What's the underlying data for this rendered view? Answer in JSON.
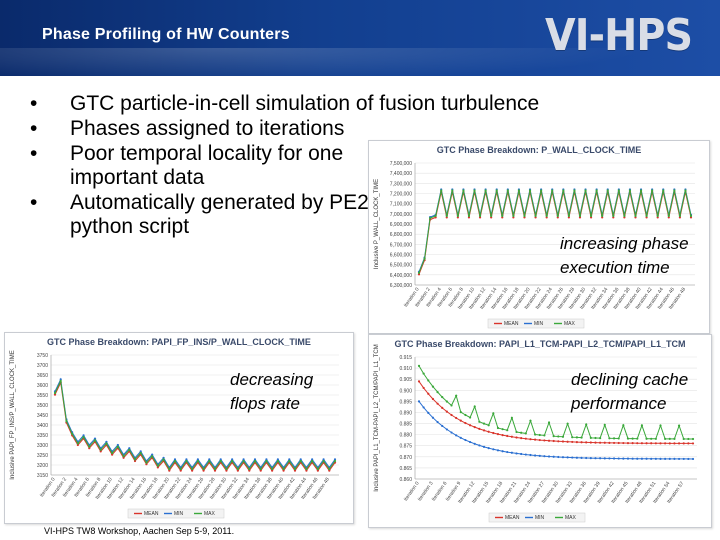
{
  "header": {
    "title": "Phase Profiling of HW Counters",
    "logo_text": "VI-HPS",
    "colors": {
      "bar": "#123f8f",
      "logo": "#d9dde6"
    }
  },
  "bullets": [
    "GTC particle-in-cell simulation of fusion turbulence",
    "Phases assigned to iterations",
    "Poor temporal locality for one important data",
    "Automatically generated by PE2 python script"
  ],
  "annotations": {
    "wall_clock": "increasing phase execution time",
    "flops": "decreasing flops rate",
    "cache": "declining cache performance"
  },
  "footer": "VI-HPS TW8 Workshop, Aachen Sep 5-9, 2011.",
  "chart_data": [
    {
      "type": "line",
      "title": "GTC Phase Breakdown: P_WALL_CLOCK_TIME",
      "ylabel": "Inclusive P_WALL_CLOCK_TIME",
      "yticks": [
        "6,300,000",
        "6,400,000",
        "6,500,000",
        "6,600,000",
        "6,700,000",
        "6,800,000",
        "6,900,000",
        "7,000,000",
        "7,100,000",
        "7,200,000",
        "7,300,000",
        "7,400,000",
        "7,500,000"
      ],
      "ylim": [
        6300000,
        7500000
      ],
      "legend": [
        "MEAN",
        "MIN",
        "MAX"
      ],
      "series_colors": [
        "#d9342b",
        "#2a6fd1",
        "#3aa83a"
      ],
      "points": 50,
      "pattern": {
        "base": [
          6450000,
          6980000
        ],
        "spike": 7230000,
        "every": 2
      }
    },
    {
      "type": "line",
      "title": "GTC Phase Breakdown: PAPI_FP_INS/P_WALL_CLOCK_TIME",
      "ylabel": "Inclusive PAPI_FP_INS/P_WALL_CLOCK_TIME",
      "yticks": [
        "3150",
        "3200",
        "3250",
        "3300",
        "3350",
        "3400",
        "3450",
        "3500",
        "3550",
        "3600",
        "3650",
        "3700",
        "3750"
      ],
      "ylim": [
        3150,
        3750
      ],
      "legend": [
        "MEAN",
        "MIN",
        "MAX"
      ],
      "series_colors": [
        "#d9342b",
        "#2a6fd1",
        "#3aa83a"
      ],
      "points": 50,
      "pattern": {
        "base": [
          3620,
          3210
        ],
        "dip": 3160,
        "every": 2
      }
    },
    {
      "type": "line",
      "title": "GTC Phase Breakdown: PAPI_L1_TCM-PAPI_L2_TCM/PAPI_L1_TCM",
      "ylabel": "Inclusive PAPI_L1_TCM-PAPI_L2_TCM/PAPI_L1_TCM",
      "yticks": [
        "0.860",
        "0.865",
        "0.870",
        "0.875",
        "0.880",
        "0.885",
        "0.890",
        "0.895",
        "0.900",
        "0.905",
        "0.910",
        "0.915"
      ],
      "ylim": [
        0.86,
        0.915
      ],
      "legend": [
        "MEAN",
        "MIN",
        "MAX"
      ],
      "series_colors": [
        "#d9342b",
        "#2a6fd1",
        "#3aa83a"
      ],
      "points": 60,
      "pattern": {
        "mean": [
          0.905,
          0.875
        ],
        "min": [
          0.895,
          0.868
        ],
        "max": [
          0.912,
          0.878
        ]
      }
    }
  ]
}
